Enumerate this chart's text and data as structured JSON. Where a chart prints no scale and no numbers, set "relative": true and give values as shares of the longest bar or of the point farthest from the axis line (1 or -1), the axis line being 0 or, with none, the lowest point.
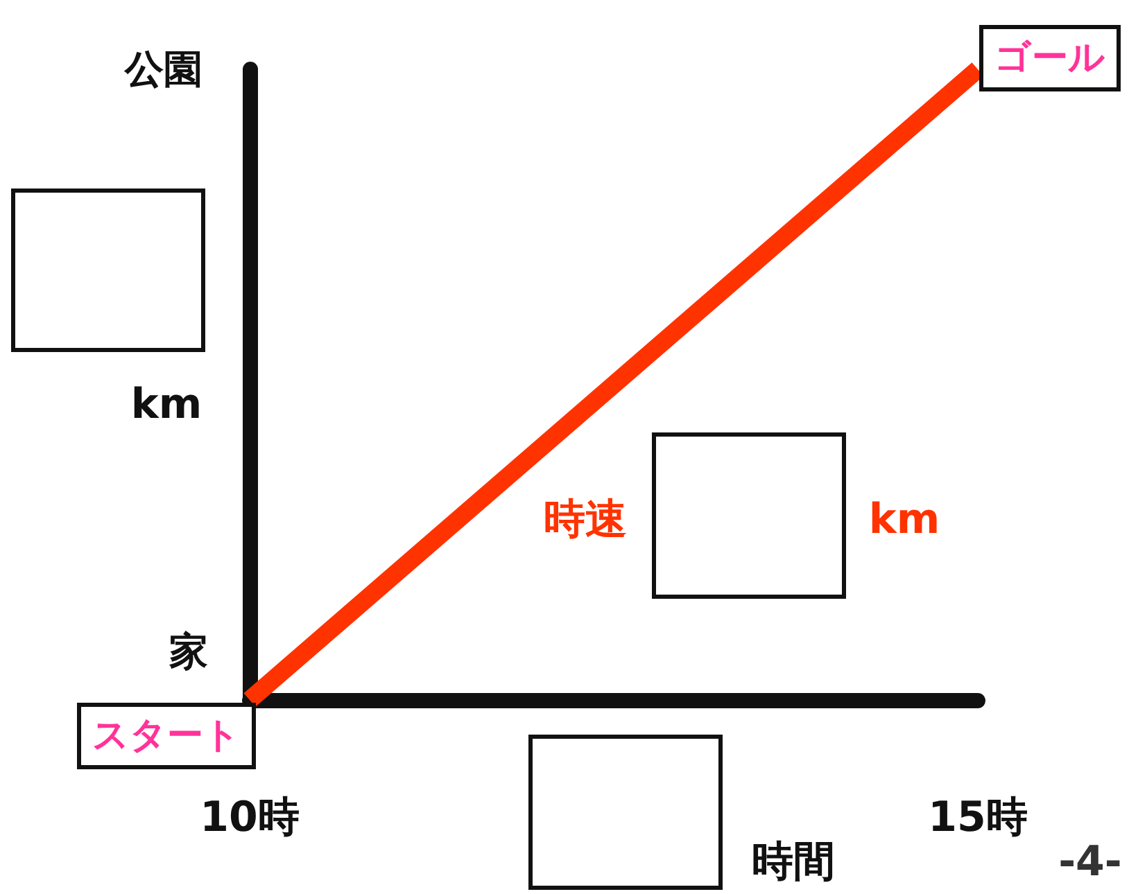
{
  "chart_data": {
    "type": "line",
    "x": [
      10,
      15
    ],
    "values": [
      0,
      1
    ],
    "relative": true,
    "color": "#ff3300",
    "marker": "none",
    "xlim": [
      10,
      15
    ],
    "xticks": [
      {
        "value": 10,
        "label": "10時"
      },
      {
        "value": 15,
        "label": "15時"
      }
    ],
    "annotations": [
      {
        "text": "スタート",
        "x": 10,
        "y": 0
      },
      {
        "text": "ゴール",
        "x": 15,
        "y": 1
      },
      "公園",
      "家",
      "km",
      "時速",
      "km",
      "時間",
      "-4-"
    ]
  }
}
